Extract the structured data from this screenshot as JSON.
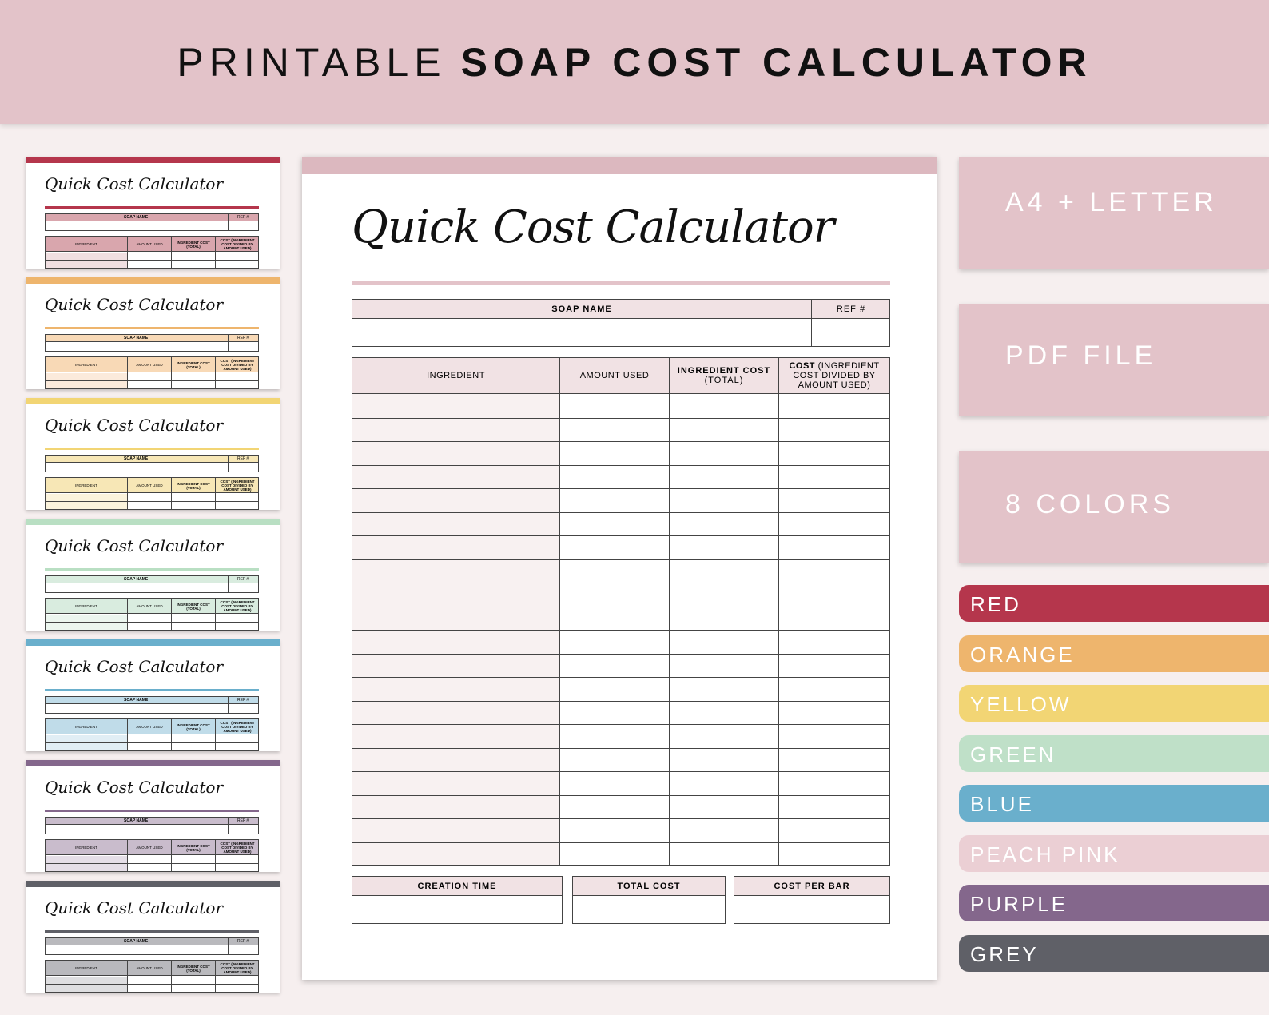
{
  "banner": {
    "light": "PRINTABLE",
    "bold": "SOAP COST CALCULATOR"
  },
  "thumbnail": {
    "title": "Quick Cost Calculator",
    "soap_name": "SOAP NAME",
    "ref": "REF #",
    "ingredient": "INGREDIENT",
    "amount_used": "AMOUNT USED",
    "ingredient_cost": "INGREDIENT COST (TOTAL)",
    "cost_per": "COST (INGREDIENT COST DIVIDED BY AMOUNT USED)"
  },
  "thumbnail_colors": [
    {
      "bar": "#b5364c",
      "light": "#d9a6ad",
      "shade": "#f0dfe1"
    },
    {
      "bar": "#eeb56d",
      "light": "#f8d9b6",
      "shade": "#fbeadb"
    },
    {
      "bar": "#f2d574",
      "light": "#f7e7b6",
      "shade": "#fbf3dc"
    },
    {
      "bar": "#b9dfc3",
      "light": "#d9ecdf",
      "shade": "#ecf6ef"
    },
    {
      "bar": "#6aafcc",
      "light": "#c0dce9",
      "shade": "#e1eef5"
    },
    {
      "bar": "#84678c",
      "light": "#c9bccc",
      "shade": "#e5dee7"
    },
    {
      "bar": "#5f6067",
      "light": "#b9b9bd",
      "shade": "#dedee0"
    }
  ],
  "page": {
    "title": "Quick Cost Calculator",
    "soap_name": "SOAP NAME",
    "ref": "REF #",
    "columns": {
      "ingredient": "INGREDIENT",
      "amount_used": "AMOUNT USED",
      "ingredient_cost_bold": "INGREDIENT COST",
      "ingredient_cost_sub": "(TOTAL)",
      "cost_bold": "COST",
      "cost_line1": "(INGREDIENT",
      "cost_line2": "COST DIVIDED BY",
      "cost_line3": "AMOUNT USED)"
    },
    "footer": {
      "creation_time": "CREATION TIME",
      "total_cost": "TOTAL COST",
      "cost_per_bar": "COST PER BAR"
    }
  },
  "features": [
    "A4 + LETTER",
    "PDF FILE",
    "8 COLORS"
  ],
  "colors": [
    {
      "label": "RED",
      "hex": "#b5364c"
    },
    {
      "label": "ORANGE",
      "hex": "#eeb56d"
    },
    {
      "label": "YELLOW",
      "hex": "#f2d574"
    },
    {
      "label": "GREEN",
      "hex": "#bfe0c8"
    },
    {
      "label": "BLUE",
      "hex": "#6aafcc"
    },
    {
      "label": "PEACH PINK",
      "hex": "#ebcfd4"
    },
    {
      "label": "PURPLE",
      "hex": "#84678c"
    },
    {
      "label": "GREY",
      "hex": "#5f6067"
    }
  ]
}
